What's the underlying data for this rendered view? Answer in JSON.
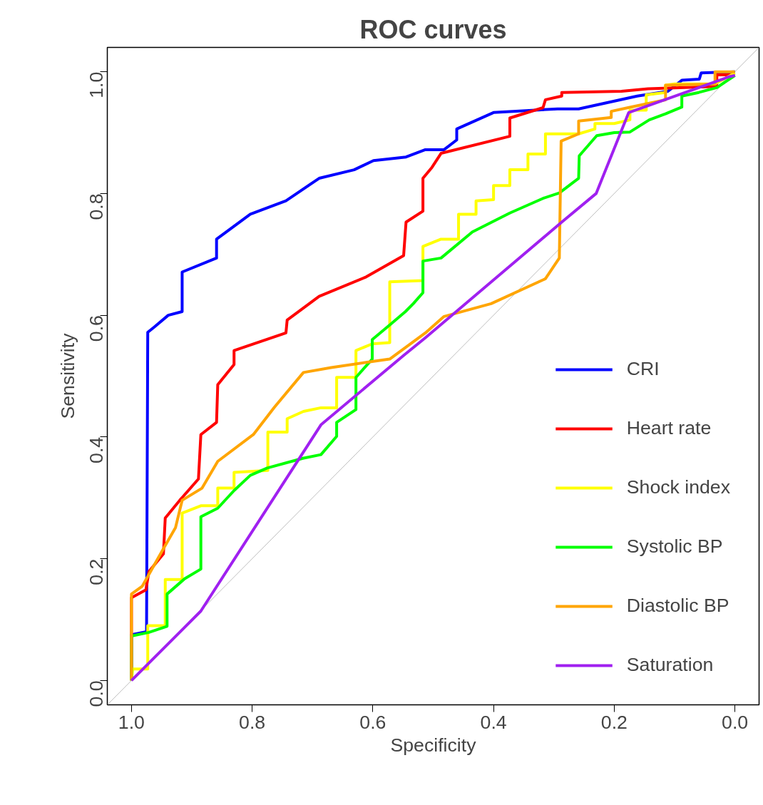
{
  "chart_data": {
    "type": "line",
    "title": "ROC curves",
    "xlabel": "Specificity",
    "ylabel": "Sensitivity",
    "xlim": [
      1.04,
      -0.04
    ],
    "ylim": [
      -0.04,
      1.04
    ],
    "xticks": [
      {
        "value": 1.0,
        "label": "1.0"
      },
      {
        "value": 0.8,
        "label": "0.8"
      },
      {
        "value": 0.6,
        "label": "0.6"
      },
      {
        "value": 0.4,
        "label": "0.4"
      },
      {
        "value": 0.2,
        "label": "0.2"
      },
      {
        "value": 0.0,
        "label": "0.0"
      }
    ],
    "yticks": [
      {
        "value": 0.0,
        "label": "0.0"
      },
      {
        "value": 0.2,
        "label": "0.2"
      },
      {
        "value": 0.4,
        "label": "0.4"
      },
      {
        "value": 0.6,
        "label": "0.6"
      },
      {
        "value": 0.8,
        "label": "0.8"
      },
      {
        "value": 1.0,
        "label": "1.0"
      }
    ],
    "grid": false,
    "legend": "bottom right",
    "line_style": "solid",
    "marker": "none",
    "series": [
      {
        "color": "#bebebe",
        "x": [
          1.04,
          -0.04
        ],
        "values": [
          -0.04,
          1.04
        ]
      },
      {
        "name": "CRI",
        "color": "#0000ff",
        "x": [
          1,
          1,
          0.975,
          0.973,
          0.963,
          0.939,
          0.916,
          0.916,
          0.859,
          0.859,
          0.803,
          0.744,
          0.689,
          0.631,
          0.599,
          0.545,
          0.513,
          0.482,
          0.461,
          0.461,
          0.4,
          0.294,
          0.259,
          0.162,
          0.111,
          0.088,
          0.059,
          0.056,
          0
        ],
        "values": [
          0,
          0.075,
          0.08,
          0.572,
          0.58,
          0.6,
          0.606,
          0.671,
          0.694,
          0.725,
          0.766,
          0.788,
          0.825,
          0.839,
          0.854,
          0.86,
          0.872,
          0.872,
          0.888,
          0.906,
          0.933,
          0.939,
          0.939,
          0.96,
          0.968,
          0.986,
          0.988,
          0.998,
          1.0
        ]
      },
      {
        "name": "Heart rate",
        "color": "#ff0000",
        "x": [
          1,
          1,
          0.976,
          0.971,
          0.947,
          0.944,
          0.92,
          0.889,
          0.885,
          0.859,
          0.857,
          0.83,
          0.83,
          0.744,
          0.742,
          0.689,
          0.611,
          0.549,
          0.545,
          0.517,
          0.517,
          0.502,
          0.487,
          0.373,
          0.373,
          0.318,
          0.314,
          0.287,
          0.287,
          0.188,
          0.144,
          0.03,
          0.03,
          0
        ],
        "values": [
          0,
          0.136,
          0.149,
          0.179,
          0.208,
          0.267,
          0.296,
          0.331,
          0.404,
          0.424,
          0.486,
          0.519,
          0.542,
          0.571,
          0.592,
          0.631,
          0.663,
          0.698,
          0.753,
          0.771,
          0.825,
          0.843,
          0.866,
          0.894,
          0.924,
          0.941,
          0.954,
          0.96,
          0.966,
          0.968,
          0.972,
          0.976,
          0.995,
          0.995
        ]
      },
      {
        "name": "Shock index",
        "color": "#ffff00",
        "x": [
          1,
          0.998,
          0.973,
          0.973,
          0.944,
          0.944,
          0.916,
          0.916,
          0.885,
          0.857,
          0.857,
          0.83,
          0.83,
          0.774,
          0.774,
          0.742,
          0.742,
          0.715,
          0.686,
          0.66,
          0.66,
          0.628,
          0.628,
          0.601,
          0.572,
          0.572,
          0.517,
          0.517,
          0.487,
          0.458,
          0.458,
          0.429,
          0.429,
          0.4,
          0.4,
          0.373,
          0.373,
          0.343,
          0.343,
          0.314,
          0.314,
          0.259,
          0.232,
          0.232,
          0.2,
          0.174,
          0.174,
          0.147,
          0.147,
          0.115,
          0.115,
          0.1,
          0.033,
          0
        ],
        "values": [
          0,
          0.019,
          0.019,
          0.09,
          0.09,
          0.166,
          0.166,
          0.275,
          0.287,
          0.287,
          0.316,
          0.316,
          0.342,
          0.345,
          0.408,
          0.408,
          0.43,
          0.442,
          0.448,
          0.448,
          0.498,
          0.498,
          0.542,
          0.553,
          0.555,
          0.655,
          0.657,
          0.713,
          0.725,
          0.725,
          0.766,
          0.766,
          0.788,
          0.79,
          0.813,
          0.813,
          0.839,
          0.839,
          0.865,
          0.865,
          0.898,
          0.898,
          0.906,
          0.915,
          0.915,
          0.921,
          0.937,
          0.937,
          0.962,
          0.966,
          0.978,
          0.98,
          0.98,
          0.998
        ]
      },
      {
        "name": "Systolic BP",
        "color": "#00ff00",
        "x": [
          1,
          1,
          0.971,
          0.941,
          0.941,
          0.912,
          0.885,
          0.885,
          0.857,
          0.83,
          0.803,
          0.775,
          0.716,
          0.686,
          0.66,
          0.66,
          0.628,
          0.628,
          0.601,
          0.601,
          0.572,
          0.546,
          0.533,
          0.517,
          0.517,
          0.487,
          0.435,
          0.373,
          0.318,
          0.291,
          0.259,
          0.258,
          0.229,
          0.2,
          0.174,
          0.142,
          0.115,
          0.088,
          0.088,
          0.06,
          0.03,
          0
        ],
        "values": [
          0,
          0.073,
          0.079,
          0.089,
          0.142,
          0.167,
          0.183,
          0.269,
          0.283,
          0.312,
          0.337,
          0.349,
          0.365,
          0.371,
          0.401,
          0.424,
          0.445,
          0.498,
          0.528,
          0.56,
          0.584,
          0.606,
          0.619,
          0.637,
          0.689,
          0.694,
          0.737,
          0.768,
          0.792,
          0.801,
          0.825,
          0.862,
          0.895,
          0.9,
          0.901,
          0.921,
          0.931,
          0.942,
          0.96,
          0.966,
          0.974,
          0.994
        ]
      },
      {
        "name": "Diastolic BP",
        "color": "#ffa500",
        "x": [
          1,
          1,
          0.982,
          0.945,
          0.927,
          0.916,
          0.883,
          0.857,
          0.798,
          0.763,
          0.715,
          0.669,
          0.601,
          0.572,
          0.513,
          0.482,
          0.404,
          0.314,
          0.291,
          0.288,
          0.259,
          0.259,
          0.205,
          0.205,
          0.177,
          0.115,
          0.115,
          0.033,
          0.033,
          0
        ],
        "values": [
          0,
          0.142,
          0.155,
          0.22,
          0.251,
          0.296,
          0.316,
          0.36,
          0.404,
          0.449,
          0.506,
          0.514,
          0.524,
          0.528,
          0.571,
          0.598,
          0.619,
          0.66,
          0.694,
          0.886,
          0.898,
          0.919,
          0.925,
          0.935,
          0.941,
          0.954,
          0.978,
          0.98,
          1.0,
          1.0
        ]
      },
      {
        "name": "Saturation",
        "color": "#a020f0",
        "x": [
          1,
          0.885,
          0.686,
          0.549,
          0.513,
          0.287,
          0.23,
          0.176,
          0.009,
          0
        ],
        "values": [
          0,
          0.114,
          0.42,
          0.534,
          0.563,
          0.753,
          0.8,
          0.933,
          0.992,
          0.994
        ]
      }
    ]
  }
}
